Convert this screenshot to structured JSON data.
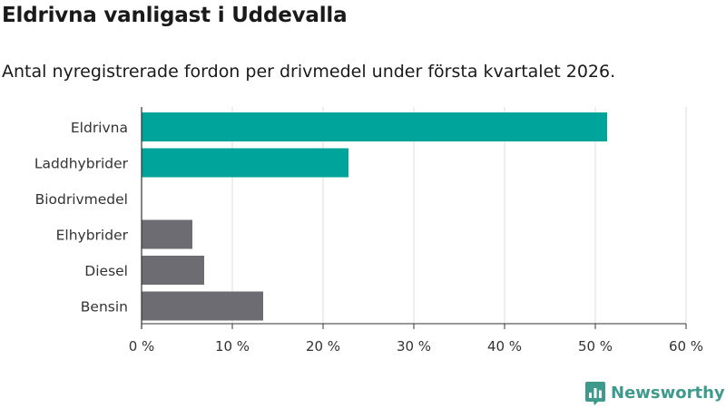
{
  "title": "Eldrivna vanligast i Uddevalla",
  "subtitle": "Antal nyregistrerade fordon per drivmedel under första kvartalet 2026.",
  "brand": {
    "name": "Newsworthy",
    "color": "#3f9a8e"
  },
  "colors": {
    "highlight": "#00a49a",
    "other": "#6d6c73",
    "grid": "#dddddd",
    "axis": "#333333"
  },
  "chart_data": {
    "type": "bar",
    "orientation": "horizontal",
    "title": "Eldrivna vanligast i Uddevalla",
    "subtitle": "Antal nyregistrerade fordon per drivmedel under första kvartalet 2026.",
    "categories": [
      "Eldrivna",
      "Laddhybrider",
      "Biodrivmedel",
      "Elhybrider",
      "Diesel",
      "Bensin"
    ],
    "values": [
      51.3,
      22.8,
      0,
      5.6,
      6.9,
      13.4
    ],
    "highlight": [
      true,
      true,
      false,
      false,
      false,
      false
    ],
    "xlim": [
      0,
      60
    ],
    "xticks": [
      0,
      10,
      20,
      30,
      40,
      50,
      60
    ],
    "tick_labels": [
      "0 %",
      "10 %",
      "20 %",
      "30 %",
      "40 %",
      "50 %",
      "60 %"
    ],
    "xlabel": "",
    "ylabel": "",
    "grid": true
  }
}
